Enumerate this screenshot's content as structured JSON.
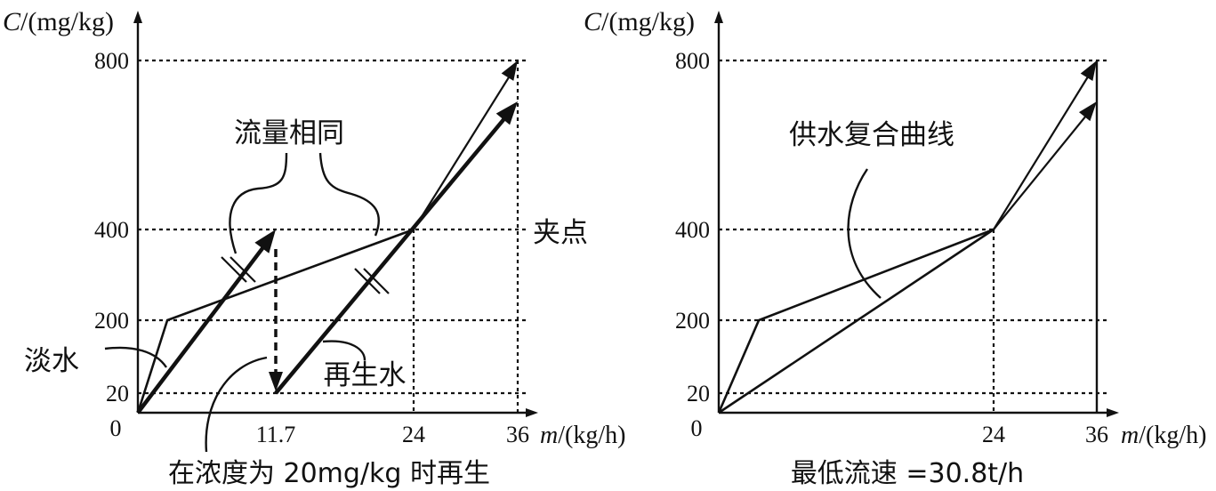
{
  "chart_data": [
    {
      "type": "line",
      "title": "",
      "xlabel_italic": "m",
      "xlabel_unit": "/(kg/h)",
      "ylabel_italic": "C",
      "ylabel_unit": "/(mg/kg)",
      "origin_label": "0",
      "xticks": [
        "11.7",
        "24",
        "36"
      ],
      "yticks": [
        "20",
        "200",
        "400",
        "800"
      ],
      "xlim": [
        0,
        38
      ],
      "ylim": [
        0,
        860
      ],
      "grid": "dotted reference lines",
      "series": [
        {
          "points": [
            [
              0,
              0
            ],
            [
              2.5,
              200
            ],
            [
              24,
              400
            ],
            [
              36,
              800
            ]
          ]
        },
        {
          "points": [
            [
              0,
              0
            ],
            [
              11.7,
              400
            ]
          ]
        },
        {
          "points": [
            [
              11.7,
              20
            ],
            [
              36,
              700
            ]
          ]
        },
        {
          "points": [
            [
              24,
              400
            ],
            [
              36,
              700
            ]
          ]
        },
        {
          "points": [
            [
              11.7,
              400
            ],
            [
              11.7,
              20
            ]
          ]
        }
      ],
      "annotations": {
        "same_flow": "流量相同",
        "pinch": "夹点",
        "fresh_water": "淡水",
        "regen_water": "再生水",
        "caption": "在浓度为 20mg/kg 时再生"
      }
    },
    {
      "type": "line",
      "title": "",
      "xlabel_italic": "m",
      "xlabel_unit": "/(kg/h)",
      "ylabel_italic": "C",
      "ylabel_unit": "/(mg/kg)",
      "origin_label": "0",
      "xticks": [
        "24",
        "36"
      ],
      "yticks": [
        "20",
        "200",
        "400",
        "800"
      ],
      "xlim": [
        0,
        38
      ],
      "ylim": [
        0,
        860
      ],
      "grid": "dotted reference lines",
      "series": [
        {
          "points": [
            [
              0,
              0
            ],
            [
              3.5,
              200
            ],
            [
              24,
              400
            ],
            [
              36,
              800
            ]
          ]
        },
        {
          "points": [
            [
              0,
              0
            ],
            [
              24,
              400
            ],
            [
              36,
              700
            ]
          ]
        }
      ],
      "annotations": {
        "composite": "供水复合曲线",
        "caption": "最低流速 =30.8t/h"
      }
    }
  ]
}
